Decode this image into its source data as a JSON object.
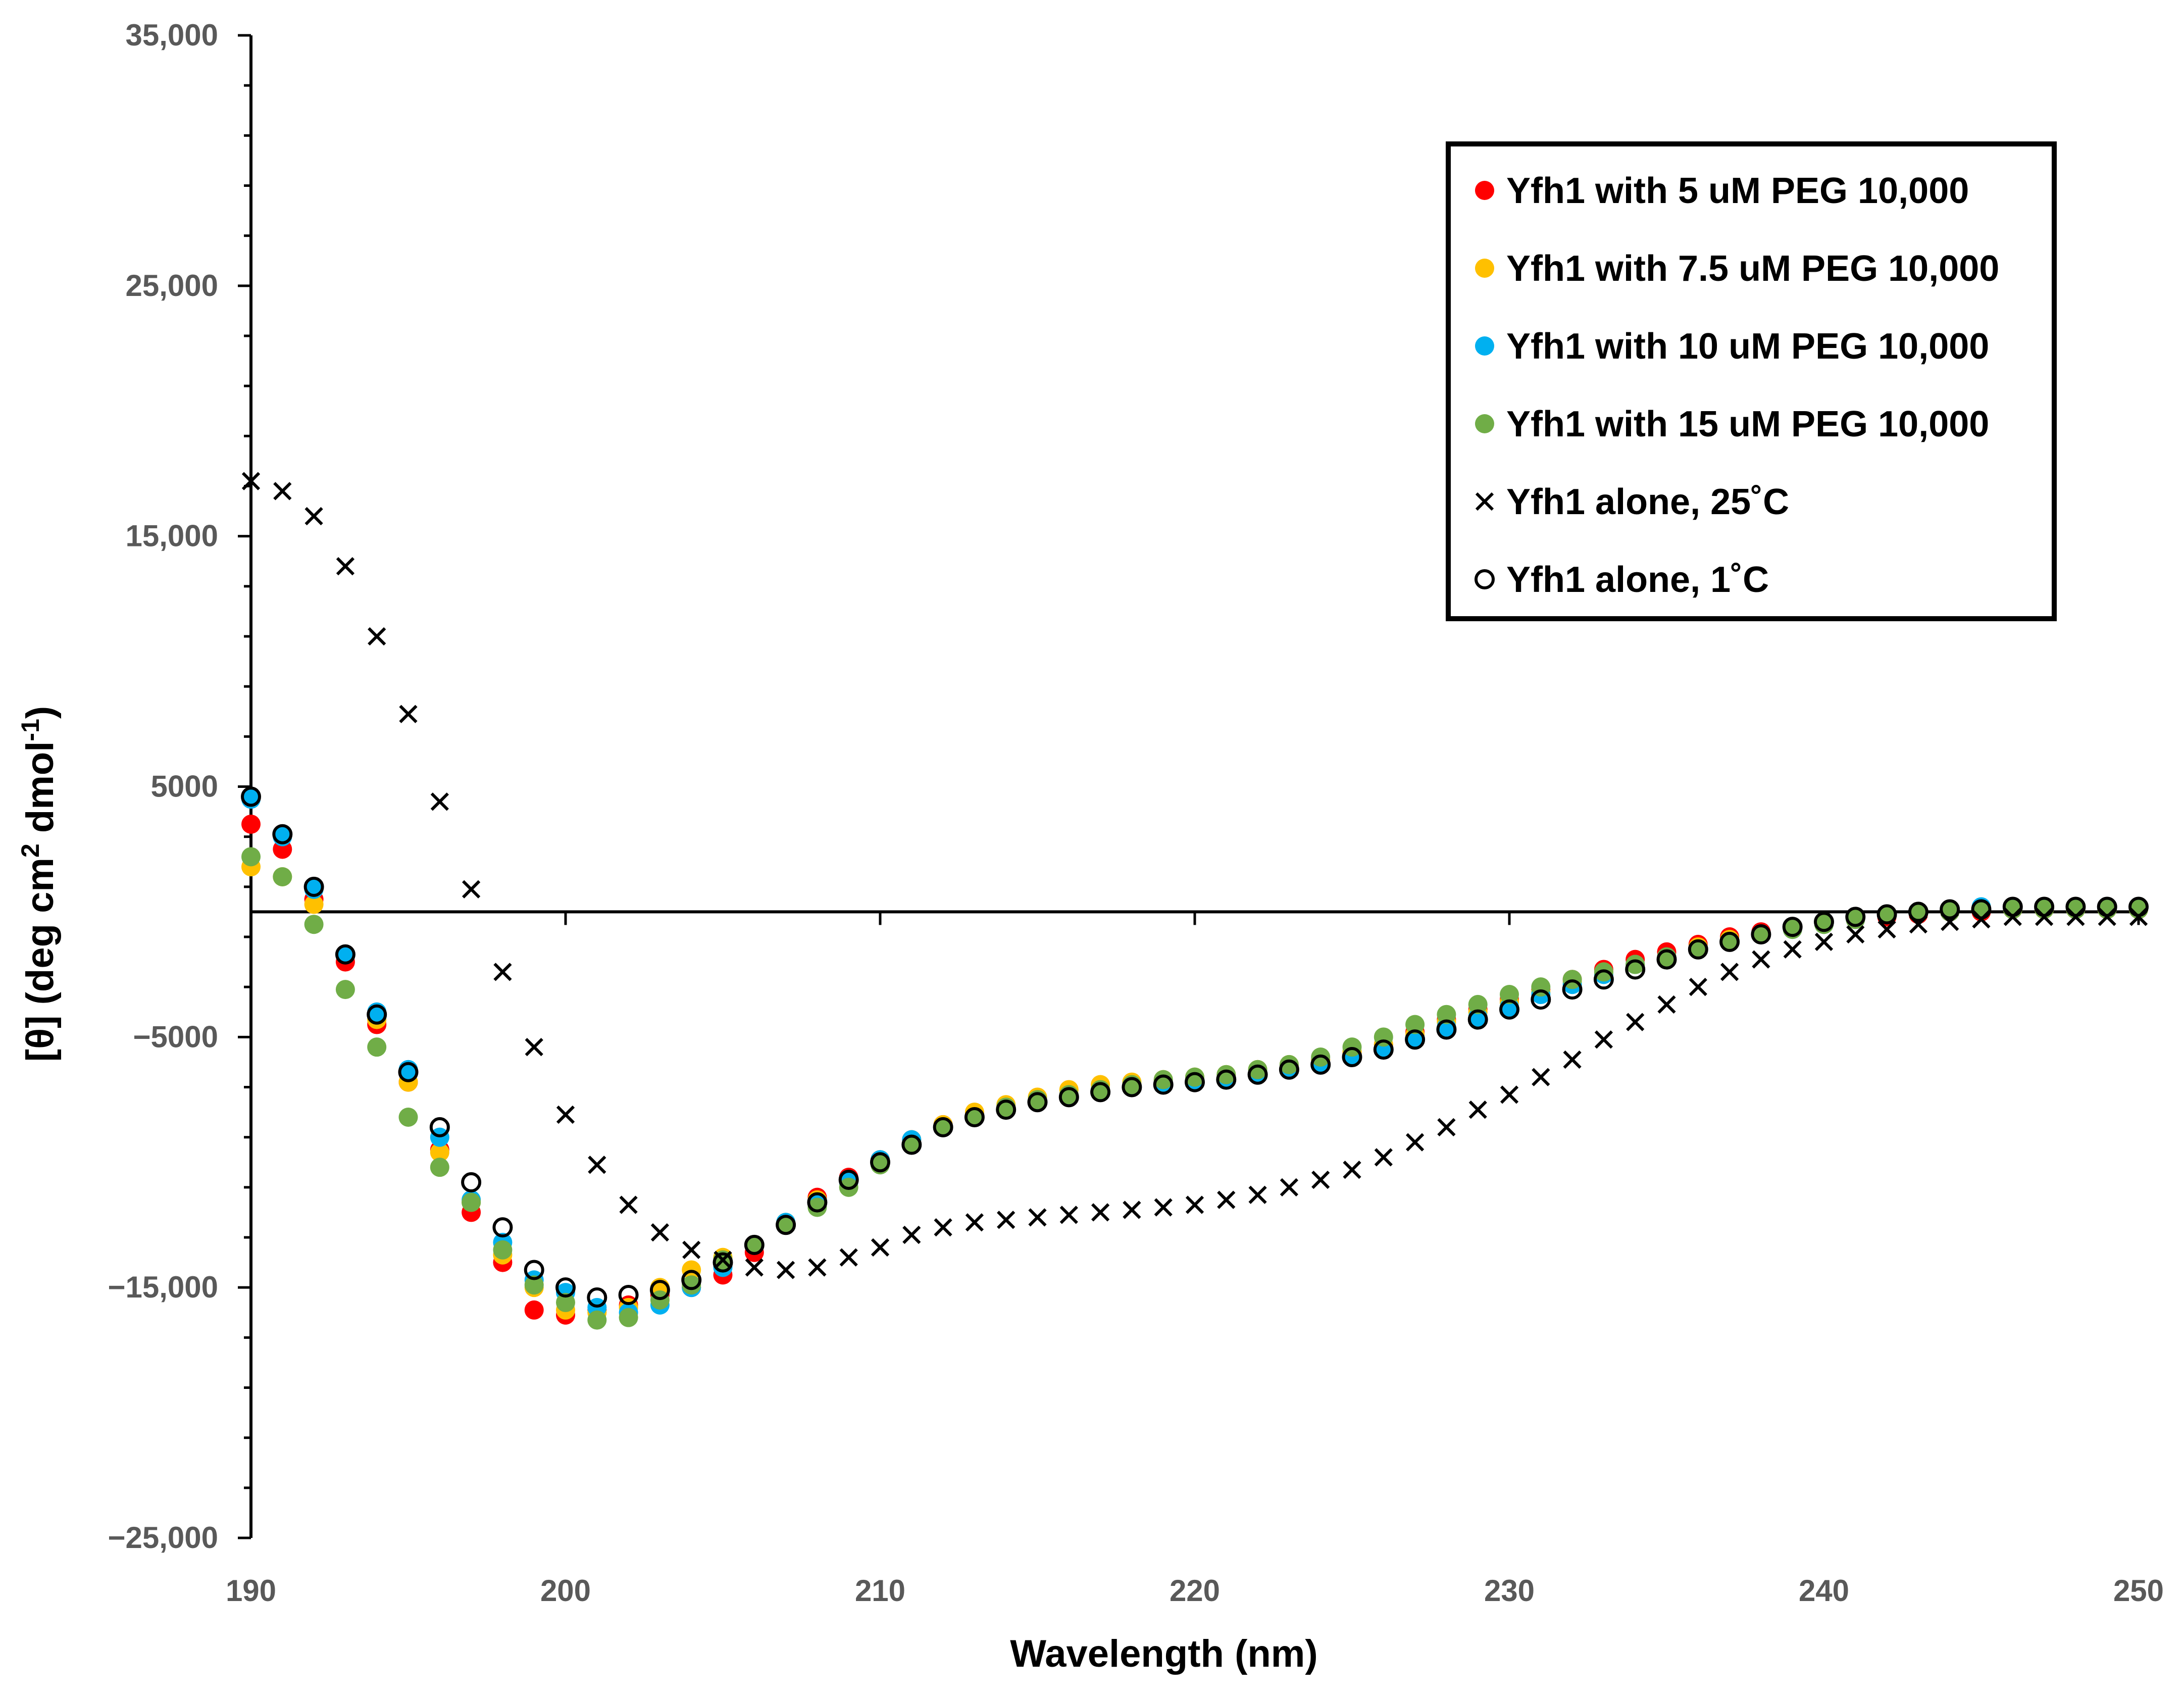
{
  "chart_data": {
    "type": "scatter",
    "title": "",
    "xlabel": "Wavelength (nm)",
    "ylabel_main": "[θ] (deg cm",
    "ylabel_sup1": "2",
    "ylabel_mid": " dmol",
    "ylabel_sup2": "-1",
    "ylabel_end": ")",
    "xlim": [
      190,
      250
    ],
    "ylim": [
      -25000,
      35000
    ],
    "x_ticks": [
      190,
      200,
      210,
      220,
      230,
      240,
      250
    ],
    "x_tick_labels": [
      "190",
      "200",
      "210",
      "220",
      "230",
      "240",
      "250"
    ],
    "y_ticks": [
      35000,
      25000,
      15000,
      5000,
      -5000,
      -15000,
      -25000
    ],
    "y_tick_labels": [
      "35,000",
      "25,000",
      "15,000",
      "5000",
      "−5000",
      "−15,000",
      "−25,000"
    ],
    "legend_position": "top-right",
    "x": [
      190,
      191,
      192,
      193,
      194,
      195,
      196,
      197,
      198,
      199,
      200,
      201,
      202,
      203,
      204,
      205,
      206,
      207,
      208,
      209,
      210,
      211,
      212,
      213,
      214,
      215,
      216,
      217,
      218,
      219,
      220,
      221,
      222,
      223,
      224,
      225,
      226,
      227,
      228,
      229,
      230,
      231,
      232,
      233,
      234,
      235,
      236,
      237,
      238,
      239,
      240,
      241,
      242,
      243,
      244,
      245,
      246,
      247,
      248,
      249,
      250
    ],
    "series": [
      {
        "name": "Yfh1 with 5 uM PEG 10,000",
        "marker": "dot",
        "color": "#ff0000",
        "values": [
          3500,
          2500,
          500,
          -2000,
          -4500,
          -6800,
          -9500,
          -12000,
          -14000,
          -15900,
          -16100,
          -15900,
          -15700,
          -15300,
          -15000,
          -14500,
          -13600,
          -12500,
          -11400,
          -10600,
          -9900,
          -9100,
          -8500,
          -8100,
          -7800,
          -7600,
          -7300,
          -7100,
          -7000,
          -6800,
          -6700,
          -6600,
          -6400,
          -6200,
          -5900,
          -5600,
          -5300,
          -4800,
          -4300,
          -3900,
          -3500,
          -3100,
          -2700,
          -2300,
          -1900,
          -1600,
          -1300,
          -1000,
          -800,
          -600,
          -400,
          -300,
          -200,
          -100,
          0,
          0,
          100,
          100,
          100,
          100,
          100
        ]
      },
      {
        "name": "Yfh1 with 7.5 uM PEG 10,000",
        "marker": "dot",
        "color": "#ffc000",
        "values": [
          1800,
          1400,
          300,
          -1700,
          -4300,
          -6800,
          -9600,
          -11600,
          -13700,
          -15000,
          -15900,
          -16000,
          -15800,
          -15000,
          -14300,
          -13800,
          -13300,
          -12400,
          -11500,
          -10700,
          -9900,
          -9100,
          -8500,
          -8000,
          -7700,
          -7400,
          -7100,
          -6900,
          -6800,
          -6700,
          -6600,
          -6500,
          -6300,
          -6100,
          -5900,
          -5600,
          -5300,
          -4900,
          -4400,
          -4000,
          -3600,
          -3200,
          -2800,
          -2400,
          -2100,
          -1800,
          -1400,
          -1100,
          -900,
          -700,
          -500,
          -300,
          -100,
          0,
          100,
          100,
          100,
          100,
          100,
          100,
          100
        ]
      },
      {
        "name": "Yfh1 with 10 uM PEG 10,000",
        "marker": "dot",
        "color": "#00b0f0",
        "values": [
          4500,
          3000,
          900,
          -1700,
          -4000,
          -6300,
          -9000,
          -11500,
          -13200,
          -14700,
          -15200,
          -15800,
          -16000,
          -15700,
          -15000,
          -14200,
          -13300,
          -12400,
          -11600,
          -10800,
          -9900,
          -9100,
          -8600,
          -8200,
          -7900,
          -7600,
          -7400,
          -7200,
          -7000,
          -6800,
          -6700,
          -6600,
          -6400,
          -6300,
          -6100,
          -5800,
          -5500,
          -5100,
          -4600,
          -4200,
          -3800,
          -3300,
          -2900,
          -2500,
          -2100,
          -1800,
          -1500,
          -1200,
          -900,
          -700,
          -500,
          -300,
          -100,
          0,
          100,
          200,
          200,
          200,
          200,
          200,
          200
        ]
      },
      {
        "name": "Yfh1 with 15 uM PEG 10,000",
        "marker": "dot",
        "color": "#70ad47",
        "values": [
          2200,
          1400,
          -500,
          -3100,
          -5400,
          -8200,
          -10200,
          -11600,
          -13500,
          -14900,
          -15600,
          -16300,
          -16200,
          -15500,
          -14900,
          -13900,
          -13300,
          -12500,
          -11800,
          -11000,
          -10100,
          -9300,
          -8600,
          -8200,
          -7800,
          -7500,
          -7300,
          -7100,
          -6900,
          -6700,
          -6600,
          -6500,
          -6300,
          -6100,
          -5800,
          -5400,
          -5000,
          -4500,
          -4100,
          -3700,
          -3300,
          -3000,
          -2700,
          -2400,
          -2100,
          -1800,
          -1500,
          -1200,
          -900,
          -700,
          -500,
          -300,
          -100,
          0,
          0,
          100,
          100,
          100,
          100,
          100,
          100
        ]
      },
      {
        "name": "Yfh1 alone, 25˚C",
        "marker": "x",
        "color": "#000000",
        "values": [
          17200,
          16800,
          15800,
          13800,
          11000,
          7900,
          4400,
          900,
          -2400,
          -5400,
          -8100,
          -10100,
          -11700,
          -12800,
          -13500,
          -13900,
          -14200,
          -14300,
          -14200,
          -13800,
          -13400,
          -12900,
          -12600,
          -12400,
          -12300,
          -12200,
          -12100,
          -12000,
          -11900,
          -11800,
          -11700,
          -11500,
          -11300,
          -11000,
          -10700,
          -10300,
          -9800,
          -9200,
          -8600,
          -7900,
          -7300,
          -6600,
          -5900,
          -5100,
          -4400,
          -3700,
          -3000,
          -2400,
          -1900,
          -1500,
          -1200,
          -900,
          -700,
          -500,
          -400,
          -300,
          -200,
          -200,
          -200,
          -200,
          -200
        ]
      },
      {
        "name": "Yfh1 alone, 1˚C",
        "marker": "circle",
        "color": "#000000",
        "values": [
          4600,
          3100,
          1000,
          -1700,
          -4100,
          -6400,
          -8600,
          -10800,
          -12600,
          -14300,
          -15000,
          -15400,
          -15300,
          -15100,
          -14700,
          -14000,
          -13300,
          -12500,
          -11600,
          -10700,
          -10000,
          -9300,
          -8600,
          -8200,
          -7900,
          -7600,
          -7400,
          -7200,
          -7000,
          -6900,
          -6800,
          -6700,
          -6500,
          -6300,
          -6100,
          -5800,
          -5500,
          -5100,
          -4700,
          -4300,
          -3900,
          -3500,
          -3100,
          -2700,
          -2300,
          -1900,
          -1500,
          -1200,
          -900,
          -600,
          -400,
          -200,
          -100,
          0,
          100,
          100,
          200,
          200,
          200,
          200,
          200
        ]
      }
    ]
  }
}
